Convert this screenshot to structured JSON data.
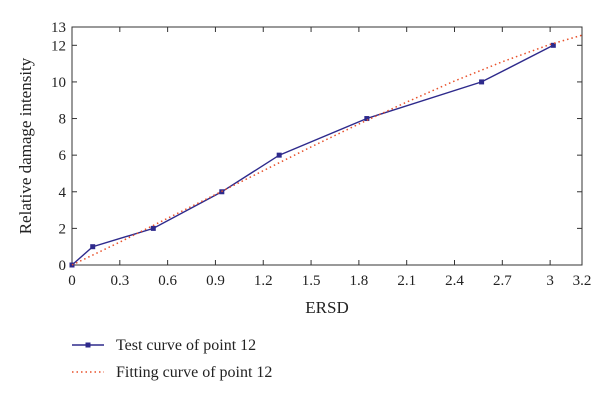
{
  "chart_data": {
    "type": "line",
    "xlabel": "ERSD",
    "ylabel": "Relative damage intensity",
    "xlim": [
      0,
      3.2
    ],
    "ylim": [
      0,
      13
    ],
    "x_ticks": [
      "0",
      "0.3",
      "0.6",
      "0.9",
      "1.2",
      "1.5",
      "1.8",
      "2.1",
      "2.4",
      "2.7",
      "3",
      "3.2"
    ],
    "y_ticks": [
      "0",
      "2",
      "4",
      "6",
      "8",
      "10",
      "12",
      "13"
    ],
    "grid": false,
    "legend_position": "below",
    "series": [
      {
        "name": "Test curve of point 12",
        "style": "solid-square-markers",
        "color": "#2e2a8c",
        "x": [
          0,
          0.13,
          0.51,
          0.94,
          1.3,
          1.85,
          2.57,
          3.02
        ],
        "y": [
          0,
          1,
          2,
          4,
          6,
          8,
          10,
          12
        ]
      },
      {
        "name": "Fitting curve of point 12",
        "style": "dotted",
        "color": "#e8502a",
        "x": [
          0,
          0.3,
          0.6,
          0.9,
          1.2,
          1.5,
          1.8,
          2.1,
          2.4,
          2.7,
          3.0,
          3.2
        ],
        "y": [
          0,
          1.25,
          2.55,
          3.85,
          5.15,
          6.45,
          7.7,
          8.9,
          10.05,
          11.1,
          12.05,
          12.55
        ]
      }
    ]
  }
}
